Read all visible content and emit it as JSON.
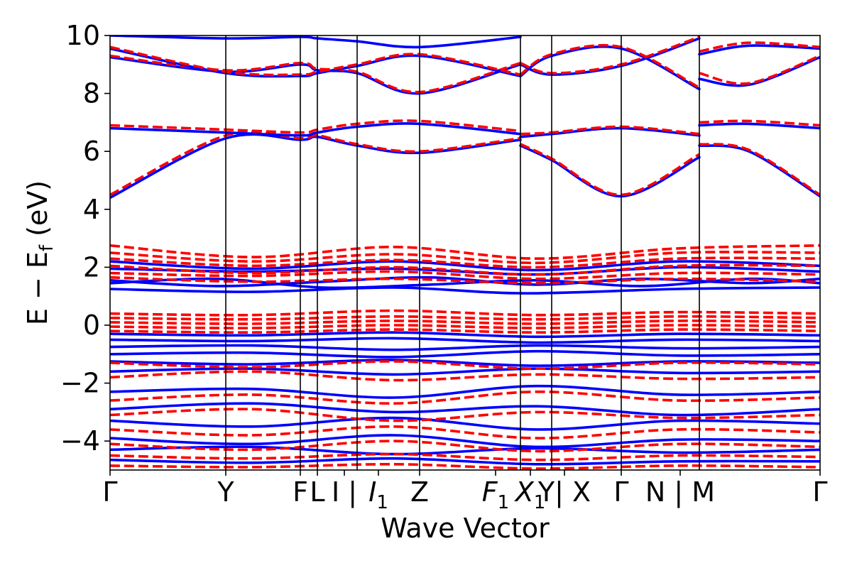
{
  "chart_data": {
    "type": "line",
    "xlabel": "Wave Vector",
    "ylabel": "E − E_f (eV)",
    "ylabel_main": "E − E",
    "ylabel_sub": "f",
    "ylabel_unit": " (eV)",
    "ylim": [
      -5,
      10
    ],
    "yticks": [
      -4,
      -2,
      0,
      2,
      4,
      6,
      8,
      10
    ],
    "ytick_labels": [
      "−4",
      "−2",
      "0",
      "2",
      "4",
      "6",
      "8",
      "10"
    ],
    "grid": false,
    "legend": "none",
    "xlim": [
      0,
      1
    ],
    "kpoint_lines": [
      0.163,
      0.268,
      0.292,
      0.348,
      0.436,
      0.578,
      0.622,
      0.72,
      0.83
    ],
    "kpoint_labels": [
      {
        "pos": 0.0,
        "text": "Γ",
        "italic": false
      },
      {
        "pos": 0.163,
        "text": "Y",
        "italic": false
      },
      {
        "pos": 0.268,
        "text": "F",
        "italic": false
      },
      {
        "pos": 0.292,
        "text": "L",
        "italic": false
      },
      {
        "pos": 0.33,
        "text": "I | ",
        "italic": false
      },
      {
        "pos": 0.378,
        "text": "I",
        "sub": "1",
        "italic": true
      },
      {
        "pos": 0.436,
        "text": "Z",
        "italic": false
      },
      {
        "pos": 0.543,
        "text": "F",
        "sub": "1",
        "italic": true
      },
      {
        "pos": 0.592,
        "text": "X",
        "sub": "1",
        "italic": true
      },
      {
        "pos": 0.64,
        "text": "Y| X",
        "italic": false
      },
      {
        "pos": 0.72,
        "text": "Γ",
        "italic": false
      },
      {
        "pos": 0.803,
        "text": "N | M",
        "italic": false
      },
      {
        "pos": 1.0,
        "text": "Γ",
        "italic": false
      }
    ],
    "colors": {
      "blue": "#0000ff",
      "red": "#ff0000"
    },
    "series": [
      {
        "style": "solid",
        "color": "blue",
        "x": [
          0,
          0.163,
          0.268,
          0.292,
          0.348,
          0.436,
          0.578
        ],
        "y": [
          4.4,
          6.45,
          6.4,
          6.5,
          6.2,
          5.95,
          6.4
        ]
      },
      {
        "style": "dashed",
        "color": "red",
        "x": [
          0,
          0.163,
          0.268,
          0.292,
          0.348,
          0.436,
          0.578
        ],
        "y": [
          4.5,
          6.55,
          6.45,
          6.55,
          6.25,
          6.0,
          6.45
        ]
      },
      {
        "style": "solid",
        "color": "blue",
        "x": [
          0,
          0.163,
          0.268,
          0.292,
          0.348,
          0.436,
          0.578
        ],
        "y": [
          6.8,
          6.65,
          6.55,
          6.65,
          6.85,
          6.95,
          6.6
        ]
      },
      {
        "style": "dashed",
        "color": "red",
        "x": [
          0,
          0.163,
          0.268,
          0.292,
          0.348,
          0.436,
          0.578
        ],
        "y": [
          6.9,
          6.75,
          6.65,
          6.75,
          6.95,
          7.05,
          6.7
        ]
      },
      {
        "style": "solid",
        "color": "blue",
        "x": [
          0.578,
          0.622,
          0.72,
          0.83
        ],
        "y": [
          6.2,
          5.7,
          4.45,
          5.8
        ]
      },
      {
        "style": "dashed",
        "color": "red",
        "x": [
          0.578,
          0.622,
          0.72,
          0.83
        ],
        "y": [
          6.25,
          5.75,
          4.5,
          5.9
        ]
      },
      {
        "style": "solid",
        "color": "blue",
        "x": [
          0.578,
          0.622,
          0.72,
          0.83
        ],
        "y": [
          6.5,
          6.6,
          6.8,
          6.55
        ]
      },
      {
        "style": "dashed",
        "color": "red",
        "x": [
          0.578,
          0.622,
          0.72,
          0.83
        ],
        "y": [
          6.6,
          6.65,
          6.85,
          6.6
        ]
      },
      {
        "style": "solid",
        "color": "blue",
        "x": [
          0.83,
          0.9,
          1.0
        ],
        "y": [
          6.2,
          6.0,
          4.45
        ]
      },
      {
        "style": "dashed",
        "color": "red",
        "x": [
          0.83,
          0.9,
          1.0
        ],
        "y": [
          6.25,
          6.05,
          4.5
        ]
      },
      {
        "style": "solid",
        "color": "blue",
        "x": [
          0.83,
          0.9,
          1.0
        ],
        "y": [
          6.9,
          6.95,
          6.8
        ]
      },
      {
        "style": "dashed",
        "color": "red",
        "x": [
          0.83,
          0.9,
          1.0
        ],
        "y": [
          7.0,
          7.05,
          6.9
        ]
      },
      {
        "style": "solid",
        "color": "blue",
        "x": [
          0,
          0.163,
          0.268,
          0.292,
          0.348,
          0.436,
          0.578
        ],
        "y": [
          9.25,
          8.75,
          9.0,
          8.8,
          8.7,
          8.0,
          9.0
        ]
      },
      {
        "style": "dashed",
        "color": "red",
        "x": [
          0,
          0.163,
          0.268,
          0.292,
          0.348,
          0.436,
          0.578
        ],
        "y": [
          9.3,
          8.8,
          9.05,
          8.85,
          8.75,
          8.05,
          9.05
        ]
      },
      {
        "style": "solid",
        "color": "blue",
        "x": [
          0,
          0.163,
          0.268,
          0.292,
          0.348,
          0.436,
          0.578
        ],
        "y": [
          9.55,
          8.7,
          8.6,
          8.7,
          8.95,
          9.3,
          8.6
        ]
      },
      {
        "style": "dashed",
        "color": "red",
        "x": [
          0,
          0.163,
          0.268,
          0.292,
          0.348,
          0.436,
          0.578
        ],
        "y": [
          9.6,
          8.75,
          8.65,
          8.75,
          9.0,
          9.35,
          8.65
        ]
      },
      {
        "style": "solid",
        "color": "blue",
        "x": [
          0,
          0.163,
          0.268,
          0.292,
          0.348,
          0.436,
          0.578
        ],
        "y": [
          10.0,
          9.9,
          9.95,
          9.9,
          9.8,
          9.6,
          9.95
        ]
      },
      {
        "style": "solid",
        "color": "blue",
        "x": [
          0.578,
          0.622,
          0.72,
          0.83
        ],
        "y": [
          8.6,
          9.3,
          9.55,
          8.15
        ]
      },
      {
        "style": "dashed",
        "color": "red",
        "x": [
          0.578,
          0.622,
          0.72,
          0.83
        ],
        "y": [
          8.65,
          9.35,
          9.6,
          8.2
        ]
      },
      {
        "style": "solid",
        "color": "blue",
        "x": [
          0.578,
          0.622,
          0.72,
          0.83
        ],
        "y": [
          9.0,
          8.65,
          8.95,
          9.9
        ]
      },
      {
        "style": "dashed",
        "color": "red",
        "x": [
          0.578,
          0.622,
          0.72,
          0.83
        ],
        "y": [
          9.05,
          8.7,
          9.0,
          9.95
        ]
      },
      {
        "style": "solid",
        "color": "blue",
        "x": [
          0.83,
          0.9,
          1.0
        ],
        "y": [
          8.5,
          8.3,
          9.25
        ]
      },
      {
        "style": "dashed",
        "color": "red",
        "x": [
          0.83,
          0.9,
          1.0
        ],
        "y": [
          8.7,
          8.35,
          9.3
        ]
      },
      {
        "style": "solid",
        "color": "blue",
        "x": [
          0.83,
          0.9,
          1.0
        ],
        "y": [
          9.35,
          9.65,
          9.55
        ]
      },
      {
        "style": "dashed",
        "color": "red",
        "x": [
          0.83,
          0.9,
          1.0
        ],
        "y": [
          9.45,
          9.75,
          9.6
        ]
      },
      {
        "style": "solid",
        "color": "blue",
        "x": [
          0,
          0.2,
          0.4,
          0.6,
          0.8,
          1.0
        ],
        "y": [
          2.2,
          1.95,
          2.2,
          1.9,
          2.2,
          2.05
        ]
      },
      {
        "style": "solid",
        "color": "blue",
        "x": [
          0,
          0.2,
          0.4,
          0.6,
          0.8,
          1.0
        ],
        "y": [
          1.95,
          1.85,
          1.95,
          1.75,
          2.0,
          1.85
        ]
      },
      {
        "style": "solid",
        "color": "blue",
        "x": [
          0,
          0.15,
          0.3,
          0.45,
          0.6,
          0.75,
          0.9,
          1.0
        ],
        "y": [
          1.55,
          1.35,
          1.5,
          1.65,
          1.4,
          1.6,
          1.45,
          1.6
        ]
      },
      {
        "style": "solid",
        "color": "blue",
        "x": [
          0,
          0.15,
          0.3,
          0.45,
          0.6,
          0.75,
          0.9,
          1.0
        ],
        "y": [
          1.45,
          1.6,
          1.3,
          1.4,
          1.55,
          1.35,
          1.6,
          1.45
        ]
      },
      {
        "style": "solid",
        "color": "blue",
        "x": [
          0,
          0.2,
          0.4,
          0.58,
          0.8,
          1.0
        ],
        "y": [
          1.25,
          1.15,
          1.3,
          1.1,
          1.25,
          1.3
        ]
      },
      {
        "style": "dashed",
        "color": "red",
        "x": [
          0,
          0.2,
          0.4,
          0.6,
          0.8,
          1.0
        ],
        "y": [
          2.75,
          2.35,
          2.7,
          2.3,
          2.65,
          2.75
        ]
      },
      {
        "style": "dashed",
        "color": "red",
        "x": [
          0,
          0.2,
          0.4,
          0.6,
          0.8,
          1.0
        ],
        "y": [
          2.5,
          2.2,
          2.45,
          2.15,
          2.5,
          2.5
        ]
      },
      {
        "style": "dashed",
        "color": "red",
        "x": [
          0,
          0.2,
          0.4,
          0.6,
          0.8,
          1.0
        ],
        "y": [
          2.3,
          2.05,
          2.25,
          2.0,
          2.3,
          2.3
        ]
      },
      {
        "style": "dashed",
        "color": "red",
        "x": [
          0,
          0.2,
          0.4,
          0.6,
          0.8,
          1.0
        ],
        "y": [
          2.05,
          1.8,
          2.0,
          1.75,
          2.05,
          2.05
        ]
      },
      {
        "style": "dashed",
        "color": "red",
        "x": [
          0,
          0.2,
          0.4,
          0.6,
          0.8,
          1.0
        ],
        "y": [
          1.8,
          1.7,
          1.85,
          1.6,
          1.8,
          1.75
        ]
      },
      {
        "style": "dashed",
        "color": "red",
        "x": [
          0,
          0.2,
          0.4,
          0.6,
          0.8,
          1.0
        ],
        "y": [
          1.65,
          1.5,
          1.6,
          1.45,
          1.6,
          1.5
        ]
      },
      {
        "style": "dashed",
        "color": "red",
        "x": [
          0,
          0.2,
          0.4,
          0.6,
          0.8,
          1.0
        ],
        "y": [
          0.4,
          0.35,
          0.5,
          0.35,
          0.45,
          0.4
        ]
      },
      {
        "style": "dashed",
        "color": "red",
        "x": [
          0,
          0.2,
          0.4,
          0.6,
          0.8,
          1.0
        ],
        "y": [
          0.25,
          0.2,
          0.3,
          0.2,
          0.3,
          0.25
        ]
      },
      {
        "style": "dashed",
        "color": "red",
        "x": [
          0,
          0.2,
          0.4,
          0.6,
          0.8,
          1.0
        ],
        "y": [
          0.1,
          0.05,
          0.15,
          0.05,
          0.15,
          0.1
        ]
      },
      {
        "style": "dashed",
        "color": "red",
        "x": [
          0,
          0.2,
          0.4,
          0.6,
          0.8,
          1.0
        ],
        "y": [
          -0.05,
          -0.1,
          0.0,
          -0.1,
          0.0,
          -0.05
        ]
      },
      {
        "style": "dashed",
        "color": "red",
        "x": [
          0,
          0.2,
          0.4,
          0.6,
          0.8,
          1.0
        ],
        "y": [
          -0.2,
          -0.25,
          -0.15,
          -0.25,
          -0.15,
          -0.2
        ]
      },
      {
        "style": "solid",
        "color": "blue",
        "x": [
          0,
          0.2,
          0.4,
          0.6,
          0.8,
          1.0
        ],
        "y": [
          -0.3,
          -0.35,
          -0.25,
          -0.4,
          -0.3,
          -0.35
        ]
      },
      {
        "style": "solid",
        "color": "blue",
        "x": [
          0,
          0.2,
          0.4,
          0.6,
          0.8,
          1.0
        ],
        "y": [
          -0.5,
          -0.55,
          -0.45,
          -0.6,
          -0.5,
          -0.55
        ]
      },
      {
        "style": "solid",
        "color": "blue",
        "x": [
          0,
          0.2,
          0.4,
          0.6,
          0.8,
          1.0
        ],
        "y": [
          -0.75,
          -0.7,
          -0.85,
          -0.7,
          -0.8,
          -0.75
        ]
      },
      {
        "style": "solid",
        "color": "blue",
        "x": [
          0,
          0.2,
          0.4,
          0.6,
          0.8,
          1.0
        ],
        "y": [
          -1.0,
          -0.95,
          -1.1,
          -0.9,
          -1.05,
          -1.0
        ]
      },
      {
        "style": "solid",
        "color": "blue",
        "x": [
          0,
          0.2,
          0.4,
          0.6,
          0.8,
          1.0
        ],
        "y": [
          -1.25,
          -1.35,
          -1.2,
          -1.4,
          -1.25,
          -1.3
        ]
      },
      {
        "style": "solid",
        "color": "blue",
        "x": [
          0,
          0.2,
          0.4,
          0.6,
          0.8,
          1.0
        ],
        "y": [
          -1.6,
          -1.5,
          -1.7,
          -1.5,
          -1.65,
          -1.6
        ]
      },
      {
        "style": "solid",
        "color": "blue",
        "x": [
          0,
          0.2,
          0.4,
          0.6,
          0.8,
          1.0
        ],
        "y": [
          -2.3,
          -2.2,
          -2.5,
          -2.1,
          -2.4,
          -2.3
        ]
      },
      {
        "style": "dashed",
        "color": "red",
        "x": [
          0,
          0.2,
          0.4,
          0.6,
          0.8,
          1.0
        ],
        "y": [
          -1.3,
          -1.45,
          -1.25,
          -1.5,
          -1.3,
          -1.35
        ]
      },
      {
        "style": "dashed",
        "color": "red",
        "x": [
          0,
          0.2,
          0.4,
          0.6,
          0.8,
          1.0
        ],
        "y": [
          -1.8,
          -1.6,
          -1.9,
          -1.7,
          -1.85,
          -1.8
        ]
      },
      {
        "style": "dashed",
        "color": "red",
        "x": [
          0,
          0.2,
          0.4,
          0.6,
          0.8,
          1.0
        ],
        "y": [
          -2.6,
          -2.4,
          -2.7,
          -2.3,
          -2.6,
          -2.5
        ]
      },
      {
        "style": "solid",
        "color": "blue",
        "x": [
          0,
          0.2,
          0.4,
          0.6,
          0.8,
          1.0
        ],
        "y": [
          -2.9,
          -2.7,
          -3.0,
          -2.8,
          -3.1,
          -2.9
        ]
      },
      {
        "style": "solid",
        "color": "blue",
        "x": [
          0,
          0.2,
          0.4,
          0.6,
          0.8,
          1.0
        ],
        "y": [
          -3.3,
          -3.5,
          -3.2,
          -3.6,
          -3.3,
          -3.4
        ]
      },
      {
        "style": "dashed",
        "color": "red",
        "x": [
          0,
          0.2,
          0.4,
          0.6,
          0.8,
          1.0
        ],
        "y": [
          -3.1,
          -2.9,
          -3.3,
          -3.0,
          -3.2,
          -3.1
        ]
      },
      {
        "style": "dashed",
        "color": "red",
        "x": [
          0,
          0.2,
          0.4,
          0.6,
          0.8,
          1.0
        ],
        "y": [
          -3.6,
          -3.8,
          -3.5,
          -3.9,
          -3.6,
          -3.7
        ]
      },
      {
        "style": "solid",
        "color": "blue",
        "x": [
          0,
          0.2,
          0.4,
          0.6,
          0.8,
          1.0
        ],
        "y": [
          -3.9,
          -4.1,
          -3.8,
          -4.2,
          -3.95,
          -4.0
        ]
      },
      {
        "style": "solid",
        "color": "blue",
        "x": [
          0,
          0.2,
          0.4,
          0.6,
          0.8,
          1.0
        ],
        "y": [
          -4.3,
          -4.2,
          -4.45,
          -4.25,
          -4.4,
          -4.3
        ]
      },
      {
        "style": "dashed",
        "color": "red",
        "x": [
          0,
          0.2,
          0.4,
          0.6,
          0.8,
          1.0
        ],
        "y": [
          -4.1,
          -4.3,
          -4.0,
          -4.35,
          -4.1,
          -4.2
        ]
      },
      {
        "style": "dashed",
        "color": "red",
        "x": [
          0,
          0.2,
          0.4,
          0.6,
          0.8,
          1.0
        ],
        "y": [
          -4.5,
          -4.6,
          -4.45,
          -4.65,
          -4.5,
          -4.55
        ]
      },
      {
        "style": "solid",
        "color": "blue",
        "x": [
          0,
          0.2,
          0.4,
          0.6,
          0.8,
          1.0
        ],
        "y": [
          -4.65,
          -4.75,
          -4.6,
          -4.8,
          -4.7,
          -4.7
        ]
      },
      {
        "style": "dashed",
        "color": "red",
        "x": [
          0,
          0.2,
          0.4,
          0.6,
          0.8,
          1.0
        ],
        "y": [
          -4.85,
          -4.9,
          -4.8,
          -4.95,
          -4.85,
          -4.9
        ]
      }
    ]
  }
}
